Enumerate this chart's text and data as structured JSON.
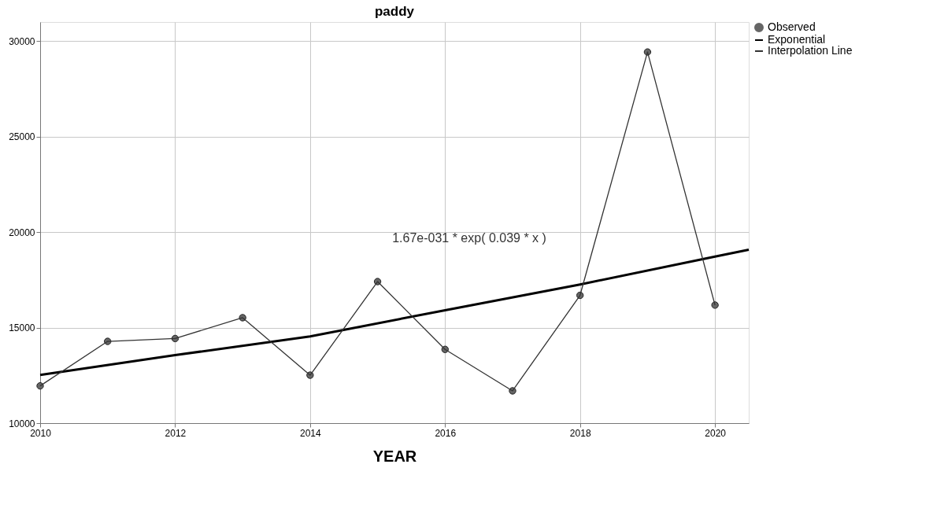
{
  "chart_data": {
    "type": "line",
    "title": "paddy",
    "xlabel": "YEAR",
    "x": [
      2010,
      2011,
      2012,
      2013,
      2014,
      2015,
      2016,
      2017,
      2018,
      2019,
      2020
    ],
    "series": [
      {
        "name": "Observed",
        "type": "scatter",
        "marker": "circle",
        "color": "#666666",
        "values": [
          11950,
          14280,
          14430,
          15520,
          12510,
          17410,
          13860,
          11690,
          16690,
          29430,
          16180
        ]
      },
      {
        "name": "Exponential",
        "color": "#000000",
        "x": [
          2010,
          2012,
          2014,
          2016,
          2018,
          2020,
          2020.5
        ],
        "values": [
          12520,
          13560,
          14540,
          15910,
          17260,
          18720,
          19080
        ]
      },
      {
        "name": "Interpolation Line",
        "color": "#333333",
        "values": [
          11950,
          14280,
          14430,
          15520,
          12510,
          17410,
          13860,
          11690,
          16690,
          29430,
          16180
        ]
      }
    ],
    "xlim": [
      2010,
      2020.5
    ],
    "xticks": [
      2010,
      2012,
      2014,
      2016,
      2018,
      2020
    ],
    "ylim": [
      10000,
      31000
    ],
    "yticks": [
      10000,
      15000,
      20000,
      25000,
      30000
    ],
    "grid": true,
    "legend": "top right",
    "annotations": [
      "1.67e-031 * exp( 0.039 * x )"
    ]
  }
}
